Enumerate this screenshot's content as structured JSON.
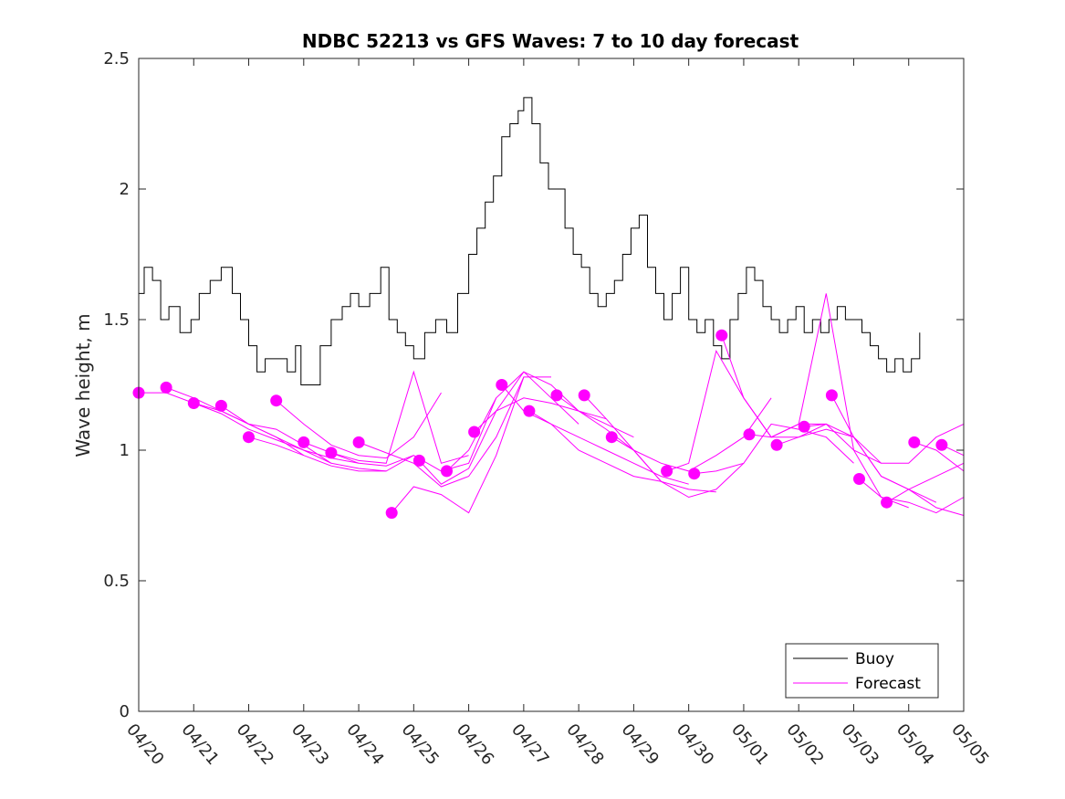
{
  "chart_data": {
    "type": "line",
    "title": "NDBC 52213 vs GFS Waves: 7 to 10 day forecast",
    "xlabel": "",
    "ylabel": "Wave height, m",
    "xlim": [
      0,
      15
    ],
    "ylim": [
      0,
      2.5
    ],
    "x_ticks": [
      0,
      1,
      2,
      3,
      4,
      5,
      6,
      7,
      8,
      9,
      10,
      11,
      12,
      13,
      14,
      15
    ],
    "x_tick_labels": [
      "04/20",
      "04/21",
      "04/22",
      "04/23",
      "04/24",
      "04/25",
      "04/26",
      "04/27",
      "04/28",
      "04/29",
      "04/30",
      "05/01",
      "05/02",
      "05/03",
      "05/04",
      "05/05"
    ],
    "y_ticks": [
      0,
      0.5,
      1,
      1.5,
      2,
      2.5
    ],
    "y_tick_labels": [
      "0",
      "0.5",
      "1",
      "1.5",
      "2",
      "2.5"
    ],
    "grid": false,
    "legend_position": "bottom-right",
    "legend": [
      {
        "name": "Buoy",
        "color": "#000000"
      },
      {
        "name": "Forecast",
        "color": "#ff00ff"
      }
    ],
    "buoy": {
      "name": "Buoy",
      "color": "#000000",
      "x": [
        0,
        0.1,
        0.25,
        0.4,
        0.55,
        0.75,
        0.95,
        1.1,
        1.3,
        1.5,
        1.7,
        1.85,
        2.0,
        2.15,
        2.3,
        2.5,
        2.7,
        2.85,
        2.95,
        3.1,
        3.3,
        3.5,
        3.7,
        3.85,
        4.0,
        4.2,
        4.4,
        4.55,
        4.7,
        4.85,
        5.0,
        5.2,
        5.4,
        5.6,
        5.8,
        6.0,
        6.15,
        6.3,
        6.45,
        6.6,
        6.75,
        6.9,
        7.0,
        7.15,
        7.3,
        7.45,
        7.6,
        7.75,
        7.9,
        8.05,
        8.2,
        8.35,
        8.5,
        8.65,
        8.8,
        8.95,
        9.1,
        9.25,
        9.4,
        9.55,
        9.7,
        9.85,
        10.0,
        10.15,
        10.3,
        10.45,
        10.6,
        10.75,
        10.9,
        11.05,
        11.2,
        11.35,
        11.5,
        11.65,
        11.8,
        11.95,
        12.1,
        12.25,
        12.4,
        12.55,
        12.7,
        12.85,
        13.0,
        13.15,
        13.3,
        13.45,
        13.6,
        13.75,
        13.9,
        14.05,
        14.2
      ],
      "y": [
        1.6,
        1.7,
        1.65,
        1.5,
        1.55,
        1.45,
        1.5,
        1.6,
        1.65,
        1.7,
        1.6,
        1.5,
        1.4,
        1.3,
        1.35,
        1.35,
        1.3,
        1.4,
        1.25,
        1.25,
        1.4,
        1.5,
        1.55,
        1.6,
        1.55,
        1.6,
        1.7,
        1.5,
        1.45,
        1.4,
        1.35,
        1.45,
        1.5,
        1.45,
        1.6,
        1.75,
        1.85,
        1.95,
        2.05,
        2.2,
        2.25,
        2.3,
        2.35,
        2.25,
        2.1,
        2.0,
        2.0,
        1.85,
        1.75,
        1.7,
        1.6,
        1.55,
        1.6,
        1.65,
        1.75,
        1.85,
        1.9,
        1.7,
        1.6,
        1.5,
        1.6,
        1.7,
        1.5,
        1.45,
        1.5,
        1.4,
        1.35,
        1.5,
        1.6,
        1.7,
        1.65,
        1.55,
        1.5,
        1.45,
        1.5,
        1.55,
        1.45,
        1.5,
        1.45,
        1.5,
        1.55,
        1.5,
        1.5,
        1.45,
        1.4,
        1.35,
        1.3,
        1.35,
        1.3,
        1.35,
        1.45
      ]
    },
    "forecast_series": [
      {
        "name": "",
        "x": [
          0,
          0.5,
          1,
          1.5,
          2,
          2.5,
          3
        ],
        "y": [
          1.22,
          1.22,
          1.18,
          1.15,
          1.1,
          1.05,
          0.98
        ]
      },
      {
        "name": "",
        "x": [
          0.5,
          1,
          1.5,
          2,
          2.5,
          3,
          3.5
        ],
        "y": [
          1.24,
          1.2,
          1.15,
          1.1,
          1.08,
          1.02,
          0.95
        ]
      },
      {
        "name": "",
        "x": [
          1,
          1.5,
          2,
          2.5,
          3,
          3.5,
          4
        ],
        "y": [
          1.18,
          1.14,
          1.08,
          1.04,
          1.0,
          0.97,
          0.95
        ]
      },
      {
        "name": "",
        "x": [
          1.5,
          2,
          2.5,
          3,
          3.5,
          4,
          4.5
        ],
        "y": [
          1.17,
          1.1,
          1.05,
          1.0,
          0.95,
          0.93,
          0.92
        ]
      },
      {
        "name": "",
        "x": [
          2,
          2.5,
          3,
          3.5,
          4,
          4.5,
          5
        ],
        "y": [
          1.05,
          1.02,
          0.98,
          0.94,
          0.92,
          0.92,
          0.98
        ]
      },
      {
        "name": "",
        "x": [
          2.5,
          3,
          3.5,
          4,
          4.5,
          5,
          5.5
        ],
        "y": [
          1.19,
          1.1,
          1.02,
          0.98,
          0.97,
          1.05,
          1.22
        ]
      },
      {
        "name": "",
        "x": [
          3,
          3.5,
          4,
          4.5,
          5,
          5.5,
          6
        ],
        "y": [
          1.03,
          0.99,
          0.96,
          0.95,
          1.3,
          0.95,
          0.98
        ]
      },
      {
        "name": "",
        "x": [
          3.5,
          4,
          4.5,
          5,
          5.5,
          6,
          6.5
        ],
        "y": [
          0.99,
          0.95,
          0.94,
          0.98,
          0.92,
          0.95,
          1.2
        ]
      },
      {
        "name": "",
        "x": [
          4,
          4.5,
          5,
          5.5,
          6,
          6.5,
          7
        ],
        "y": [
          1.03,
          0.99,
          0.95,
          0.86,
          0.9,
          1.05,
          1.28
        ]
      },
      {
        "name": "",
        "x": [
          4.6,
          5,
          5.5,
          6,
          6.5,
          7,
          7.5
        ],
        "y": [
          0.76,
          0.86,
          0.83,
          0.76,
          0.98,
          1.28,
          1.28
        ]
      },
      {
        "name": "",
        "x": [
          5.1,
          5.5,
          6,
          6.5,
          7,
          7.5,
          8
        ],
        "y": [
          0.96,
          0.87,
          0.93,
          1.15,
          1.3,
          1.2,
          1.1
        ]
      },
      {
        "name": "",
        "x": [
          5.6,
          6,
          6.5,
          7,
          7.5,
          8,
          8.5
        ],
        "y": [
          0.92,
          1.0,
          1.2,
          1.3,
          1.25,
          1.15,
          1.12
        ]
      },
      {
        "name": "",
        "x": [
          6.1,
          6.5,
          7,
          7.5,
          8,
          8.5,
          9
        ],
        "y": [
          1.07,
          1.15,
          1.2,
          1.18,
          1.15,
          1.1,
          1.05
        ]
      },
      {
        "name": "",
        "x": [
          6.6,
          7,
          7.5,
          8,
          8.5,
          9,
          9.5
        ],
        "y": [
          1.25,
          1.15,
          1.1,
          1.0,
          0.95,
          0.9,
          0.88
        ]
      },
      {
        "name": "",
        "x": [
          7.1,
          7.5,
          8,
          8.5,
          9,
          9.5,
          10
        ],
        "y": [
          1.15,
          1.1,
          1.05,
          1.0,
          0.95,
          0.9,
          0.87
        ]
      },
      {
        "name": "",
        "x": [
          7.6,
          8,
          8.5,
          9,
          9.5,
          10,
          10.5
        ],
        "y": [
          1.21,
          1.15,
          1.08,
          1.0,
          0.88,
          0.85,
          0.84
        ]
      },
      {
        "name": "",
        "x": [
          8.1,
          8.5,
          9,
          9.5,
          10,
          10.5,
          11
        ],
        "y": [
          1.21,
          1.12,
          1.0,
          0.88,
          0.82,
          0.85,
          0.95
        ]
      },
      {
        "name": "",
        "x": [
          8.6,
          9,
          9.5,
          10,
          10.5,
          11,
          11.5
        ],
        "y": [
          1.05,
          1.0,
          0.95,
          0.92,
          0.98,
          1.05,
          1.2
        ]
      },
      {
        "name": "",
        "x": [
          9.6,
          10,
          10.5,
          11,
          11.5,
          12,
          12.5
        ],
        "y": [
          0.92,
          0.95,
          1.38,
          1.2,
          1.05,
          1.1,
          1.1
        ]
      },
      {
        "name": "",
        "x": [
          10.1,
          10.5,
          11,
          11.5,
          12,
          12.5,
          13
        ],
        "y": [
          0.91,
          0.92,
          0.95,
          1.1,
          1.08,
          1.05,
          0.95
        ]
      },
      {
        "name": "",
        "x": [
          10.6,
          11,
          11.5,
          12,
          12.5,
          13,
          13.5
        ],
        "y": [
          1.44,
          1.2,
          1.05,
          1.05,
          1.1,
          1.0,
          0.95
        ]
      },
      {
        "name": "",
        "x": [
          11.1,
          11.5,
          12,
          12.5,
          13,
          13.5,
          14
        ],
        "y": [
          1.06,
          1.05,
          1.1,
          1.6,
          1.0,
          0.82,
          0.78
        ]
      },
      {
        "name": "",
        "x": [
          11.6,
          12,
          12.5,
          13,
          13.5,
          14,
          14.5
        ],
        "y": [
          1.02,
          1.05,
          1.08,
          1.05,
          0.9,
          0.85,
          0.8
        ]
      },
      {
        "name": "",
        "x": [
          12.1,
          12.5,
          13,
          13.5,
          14,
          14.5,
          15
        ],
        "y": [
          1.09,
          1.1,
          1.05,
          0.95,
          0.95,
          1.05,
          1.1
        ]
      },
      {
        "name": "",
        "x": [
          12.6,
          13,
          13.5,
          14,
          14.5,
          15
        ],
        "y": [
          1.21,
          1.05,
          0.9,
          0.85,
          0.78,
          0.75
        ]
      },
      {
        "name": "",
        "x": [
          13.1,
          13.5,
          14,
          14.5,
          15
        ],
        "y": [
          0.89,
          0.82,
          0.8,
          0.76,
          0.82
        ]
      },
      {
        "name": "",
        "x": [
          13.6,
          14,
          14.5,
          15
        ],
        "y": [
          0.8,
          0.85,
          0.9,
          0.95
        ]
      },
      {
        "name": "",
        "x": [
          14.1,
          14.5,
          15
        ],
        "y": [
          1.03,
          1.0,
          0.92
        ]
      },
      {
        "name": "",
        "x": [
          14.6,
          15
        ],
        "y": [
          1.02,
          0.98
        ]
      }
    ],
    "forecast_color": "#ff00ff"
  }
}
